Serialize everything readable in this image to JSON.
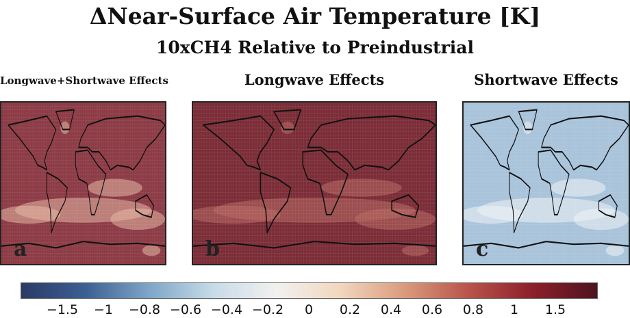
{
  "title": "ΔNear-Surface Air Temperature [K]",
  "subtitle": "10xCH4 Relative to Preindustrial",
  "panels": [
    {
      "title": "Longwave+Shortwave Effects",
      "label": "a",
      "base_color": "#8c3b45",
      "light_color": "#e3b7a3"
    },
    {
      "title": "Longwave Effects",
      "label": "b",
      "base_color": "#7b2d37",
      "light_color": "#b86a64"
    },
    {
      "title": "Shortwave Effects",
      "label": "c",
      "base_color": "#a8c3da",
      "light_color": "#eef2f6"
    }
  ],
  "colorbar": {
    "ticks": [
      "−1.5",
      "−1",
      "−0.8",
      "−0.6",
      "−0.4",
      "−0.2",
      "0",
      "0.2",
      "0.4",
      "0.6",
      "0.8",
      "1",
      "1.5"
    ],
    "colors": [
      "#2b3a66",
      "#3c5f93",
      "#7ea6c8",
      "#c7dbe8",
      "#f2f1ef",
      "#f2d6bd",
      "#d99a7c",
      "#b8534a",
      "#8c1f2a",
      "#4e1420"
    ]
  }
}
